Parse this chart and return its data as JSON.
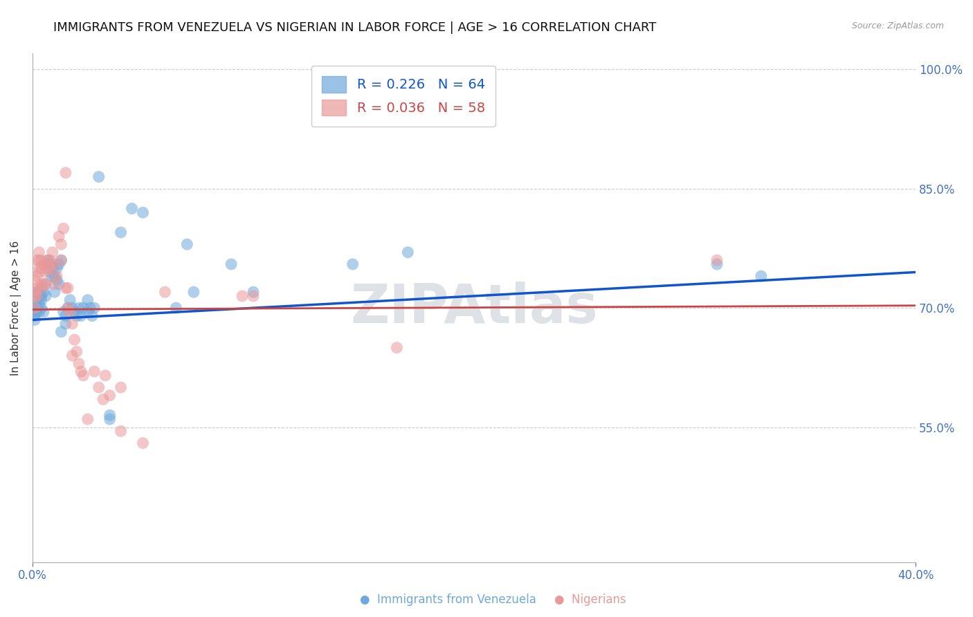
{
  "title": "IMMIGRANTS FROM VENEZUELA VS NIGERIAN IN LABOR FORCE | AGE > 16 CORRELATION CHART",
  "source_text": "Source: ZipAtlas.com",
  "ylabel": "In Labor Force | Age > 16",
  "legend_labels": [
    "Immigrants from Venezuela",
    "Nigerians"
  ],
  "venezuela_R": 0.226,
  "venezuela_N": 64,
  "nigeria_R": 0.036,
  "nigeria_N": 58,
  "venezuela_color": "#6fa8dc",
  "nigeria_color": "#ea9999",
  "venezuela_line_color": "#1155cc",
  "nigeria_line_color": "#cc4444",
  "watermark": "ZIPAtlas",
  "watermark_color": "#c8d0d8",
  "xlim": [
    0.0,
    0.4
  ],
  "ylim": [
    0.38,
    1.02
  ],
  "yticks": [
    0.55,
    0.7,
    0.85,
    1.0
  ],
  "xticks": [
    0.0,
    0.4
  ],
  "background_color": "#ffffff",
  "grid_color": "#cccccc",
  "tick_color": "#4472c4",
  "title_fontsize": 13,
  "axis_label_fontsize": 11,
  "tick_fontsize": 12,
  "venezuela_scatter": [
    [
      0.001,
      0.685
    ],
    [
      0.001,
      0.69
    ],
    [
      0.001,
      0.695
    ],
    [
      0.001,
      0.7
    ],
    [
      0.002,
      0.695
    ],
    [
      0.002,
      0.71
    ],
    [
      0.002,
      0.72
    ],
    [
      0.002,
      0.7
    ],
    [
      0.003,
      0.705
    ],
    [
      0.003,
      0.715
    ],
    [
      0.003,
      0.695
    ],
    [
      0.003,
      0.72
    ],
    [
      0.004,
      0.71
    ],
    [
      0.004,
      0.725
    ],
    [
      0.004,
      0.715
    ],
    [
      0.004,
      0.7
    ],
    [
      0.005,
      0.695
    ],
    [
      0.005,
      0.72
    ],
    [
      0.006,
      0.73
    ],
    [
      0.006,
      0.715
    ],
    [
      0.007,
      0.755
    ],
    [
      0.007,
      0.76
    ],
    [
      0.008,
      0.745
    ],
    [
      0.008,
      0.755
    ],
    [
      0.009,
      0.75
    ],
    [
      0.009,
      0.74
    ],
    [
      0.01,
      0.74
    ],
    [
      0.01,
      0.72
    ],
    [
      0.011,
      0.75
    ],
    [
      0.011,
      0.735
    ],
    [
      0.012,
      0.755
    ],
    [
      0.012,
      0.73
    ],
    [
      0.013,
      0.76
    ],
    [
      0.013,
      0.67
    ],
    [
      0.014,
      0.695
    ],
    [
      0.015,
      0.68
    ],
    [
      0.015,
      0.69
    ],
    [
      0.016,
      0.7
    ],
    [
      0.017,
      0.71
    ],
    [
      0.018,
      0.7
    ],
    [
      0.019,
      0.695
    ],
    [
      0.02,
      0.69
    ],
    [
      0.021,
      0.7
    ],
    [
      0.022,
      0.69
    ],
    [
      0.023,
      0.7
    ],
    [
      0.025,
      0.71
    ],
    [
      0.025,
      0.695
    ],
    [
      0.026,
      0.7
    ],
    [
      0.027,
      0.69
    ],
    [
      0.028,
      0.7
    ],
    [
      0.03,
      0.865
    ],
    [
      0.035,
      0.56
    ],
    [
      0.035,
      0.565
    ],
    [
      0.04,
      0.795
    ],
    [
      0.045,
      0.825
    ],
    [
      0.05,
      0.82
    ],
    [
      0.065,
      0.7
    ],
    [
      0.07,
      0.78
    ],
    [
      0.073,
      0.72
    ],
    [
      0.09,
      0.755
    ],
    [
      0.1,
      0.72
    ],
    [
      0.145,
      0.755
    ],
    [
      0.17,
      0.77
    ],
    [
      0.31,
      0.755
    ],
    [
      0.33,
      0.74
    ]
  ],
  "nigeria_scatter": [
    [
      0.001,
      0.7
    ],
    [
      0.001,
      0.72
    ],
    [
      0.001,
      0.735
    ],
    [
      0.001,
      0.715
    ],
    [
      0.002,
      0.725
    ],
    [
      0.002,
      0.74
    ],
    [
      0.002,
      0.715
    ],
    [
      0.002,
      0.76
    ],
    [
      0.003,
      0.76
    ],
    [
      0.003,
      0.75
    ],
    [
      0.003,
      0.745
    ],
    [
      0.003,
      0.77
    ],
    [
      0.004,
      0.76
    ],
    [
      0.004,
      0.75
    ],
    [
      0.004,
      0.725
    ],
    [
      0.004,
      0.73
    ],
    [
      0.005,
      0.755
    ],
    [
      0.005,
      0.73
    ],
    [
      0.006,
      0.745
    ],
    [
      0.006,
      0.73
    ],
    [
      0.007,
      0.76
    ],
    [
      0.007,
      0.75
    ],
    [
      0.008,
      0.76
    ],
    [
      0.008,
      0.75
    ],
    [
      0.009,
      0.77
    ],
    [
      0.01,
      0.755
    ],
    [
      0.01,
      0.73
    ],
    [
      0.011,
      0.74
    ],
    [
      0.012,
      0.79
    ],
    [
      0.013,
      0.76
    ],
    [
      0.013,
      0.78
    ],
    [
      0.014,
      0.8
    ],
    [
      0.015,
      0.87
    ],
    [
      0.015,
      0.725
    ],
    [
      0.016,
      0.7
    ],
    [
      0.016,
      0.725
    ],
    [
      0.017,
      0.695
    ],
    [
      0.018,
      0.68
    ],
    [
      0.018,
      0.64
    ],
    [
      0.019,
      0.66
    ],
    [
      0.02,
      0.645
    ],
    [
      0.021,
      0.63
    ],
    [
      0.022,
      0.62
    ],
    [
      0.023,
      0.615
    ],
    [
      0.025,
      0.56
    ],
    [
      0.028,
      0.62
    ],
    [
      0.03,
      0.6
    ],
    [
      0.032,
      0.585
    ],
    [
      0.033,
      0.615
    ],
    [
      0.035,
      0.59
    ],
    [
      0.04,
      0.6
    ],
    [
      0.04,
      0.545
    ],
    [
      0.05,
      0.53
    ],
    [
      0.06,
      0.72
    ],
    [
      0.095,
      0.715
    ],
    [
      0.1,
      0.715
    ],
    [
      0.165,
      0.65
    ],
    [
      0.31,
      0.76
    ]
  ],
  "ven_line": [
    [
      0.0,
      0.685
    ],
    [
      0.4,
      0.745
    ]
  ],
  "nig_line": [
    [
      0.0,
      0.698
    ],
    [
      0.4,
      0.703
    ]
  ]
}
